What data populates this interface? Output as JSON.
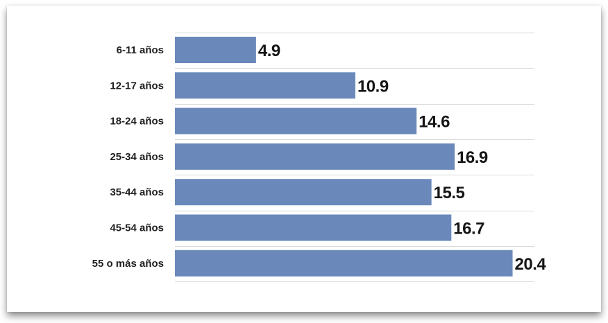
{
  "colors": {
    "bar": "#6a89ba",
    "background": "#ffffff",
    "text": "#151515"
  },
  "chart_data": {
    "type": "bar",
    "orientation": "horizontal",
    "categories": [
      "6-11 años",
      "12-17 años",
      "18-24 años",
      "25-34 años",
      "35-44 años",
      "45-54 años",
      "55 o más años"
    ],
    "values": [
      4.9,
      10.9,
      14.6,
      16.9,
      15.5,
      16.7,
      20.4
    ],
    "value_labels": [
      "4.9",
      "10.9",
      "14.6",
      "16.9",
      "15.5",
      "16.7",
      "20.4"
    ],
    "xlim": [
      0,
      21
    ],
    "grid": true
  }
}
